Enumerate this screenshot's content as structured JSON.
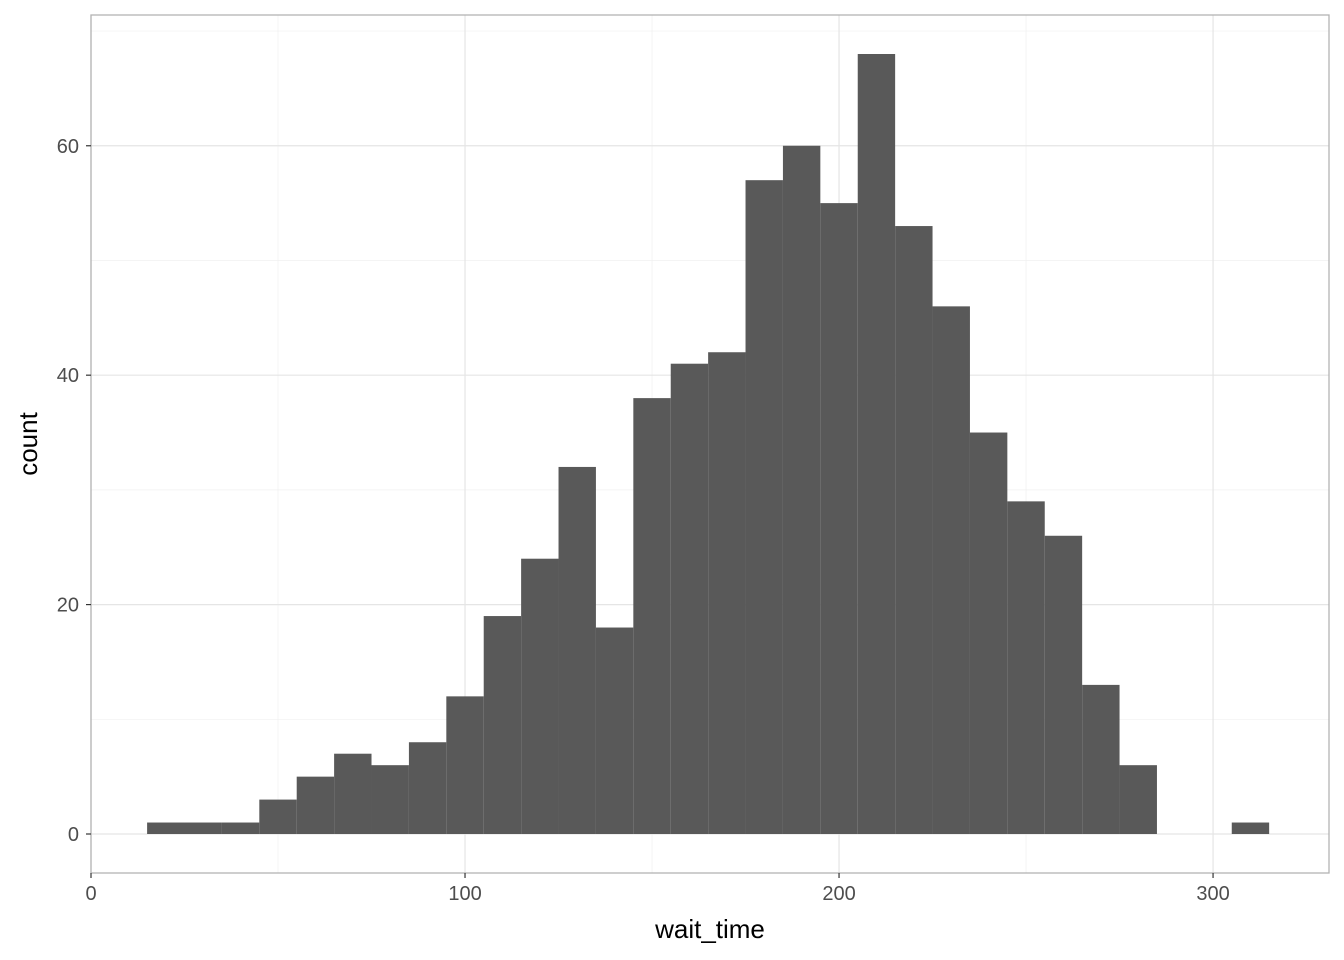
{
  "chart_data": {
    "type": "bar",
    "title": "",
    "xlabel": "wait_time",
    "ylabel": "count",
    "xlim": [
      0,
      331
    ],
    "ylim": [
      -3.4,
      71.4
    ],
    "x_ticks": [
      0,
      100,
      200,
      300
    ],
    "y_ticks": [
      0,
      20,
      40,
      60
    ],
    "grid": true,
    "theme": "light",
    "bar_color": "#595959",
    "bin_width": 10,
    "bins": [
      {
        "start": 15,
        "end": 25,
        "count": 1
      },
      {
        "start": 25,
        "end": 35,
        "count": 1
      },
      {
        "start": 35,
        "end": 45,
        "count": 1
      },
      {
        "start": 45,
        "end": 55,
        "count": 3
      },
      {
        "start": 55,
        "end": 65,
        "count": 5
      },
      {
        "start": 65,
        "end": 75,
        "count": 7
      },
      {
        "start": 75,
        "end": 85,
        "count": 6
      },
      {
        "start": 85,
        "end": 95,
        "count": 8
      },
      {
        "start": 95,
        "end": 105,
        "count": 12
      },
      {
        "start": 105,
        "end": 115,
        "count": 19
      },
      {
        "start": 115,
        "end": 125,
        "count": 24
      },
      {
        "start": 125,
        "end": 135,
        "count": 32
      },
      {
        "start": 135,
        "end": 145,
        "count": 18
      },
      {
        "start": 145,
        "end": 155,
        "count": 38
      },
      {
        "start": 155,
        "end": 165,
        "count": 41
      },
      {
        "start": 165,
        "end": 175,
        "count": 42
      },
      {
        "start": 175,
        "end": 185,
        "count": 57
      },
      {
        "start": 185,
        "end": 195,
        "count": 60
      },
      {
        "start": 195,
        "end": 205,
        "count": 55
      },
      {
        "start": 205,
        "end": 215,
        "count": 68
      },
      {
        "start": 215,
        "end": 225,
        "count": 53
      },
      {
        "start": 225,
        "end": 235,
        "count": 46
      },
      {
        "start": 235,
        "end": 245,
        "count": 35
      },
      {
        "start": 245,
        "end": 255,
        "count": 29
      },
      {
        "start": 255,
        "end": 265,
        "count": 26
      },
      {
        "start": 265,
        "end": 275,
        "count": 13
      },
      {
        "start": 275,
        "end": 285,
        "count": 6
      },
      {
        "start": 285,
        "end": 295,
        "count": 0
      },
      {
        "start": 295,
        "end": 305,
        "count": 0
      },
      {
        "start": 305,
        "end": 315,
        "count": 1
      }
    ]
  }
}
